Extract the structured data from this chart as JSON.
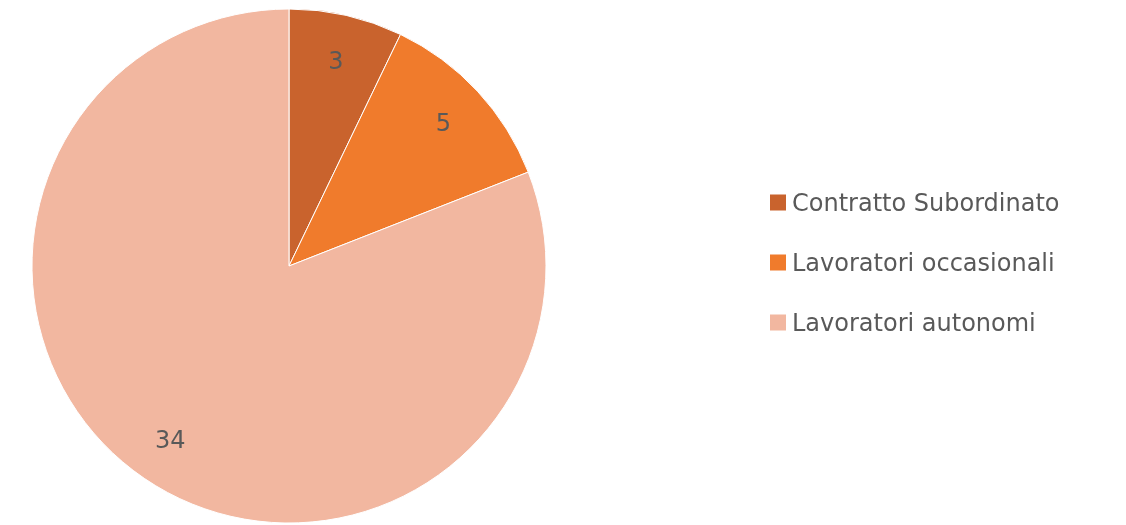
{
  "chart_data": {
    "type": "pie",
    "categories": [
      "Contratto Subordinato",
      "Lavoratori occasionali",
      "Lavoratori autonomi"
    ],
    "values": [
      3,
      5,
      34
    ],
    "colors": [
      "#c9632d",
      "#f07b2c",
      "#f2b7a0"
    ],
    "data_labels": true,
    "legend": "right"
  }
}
